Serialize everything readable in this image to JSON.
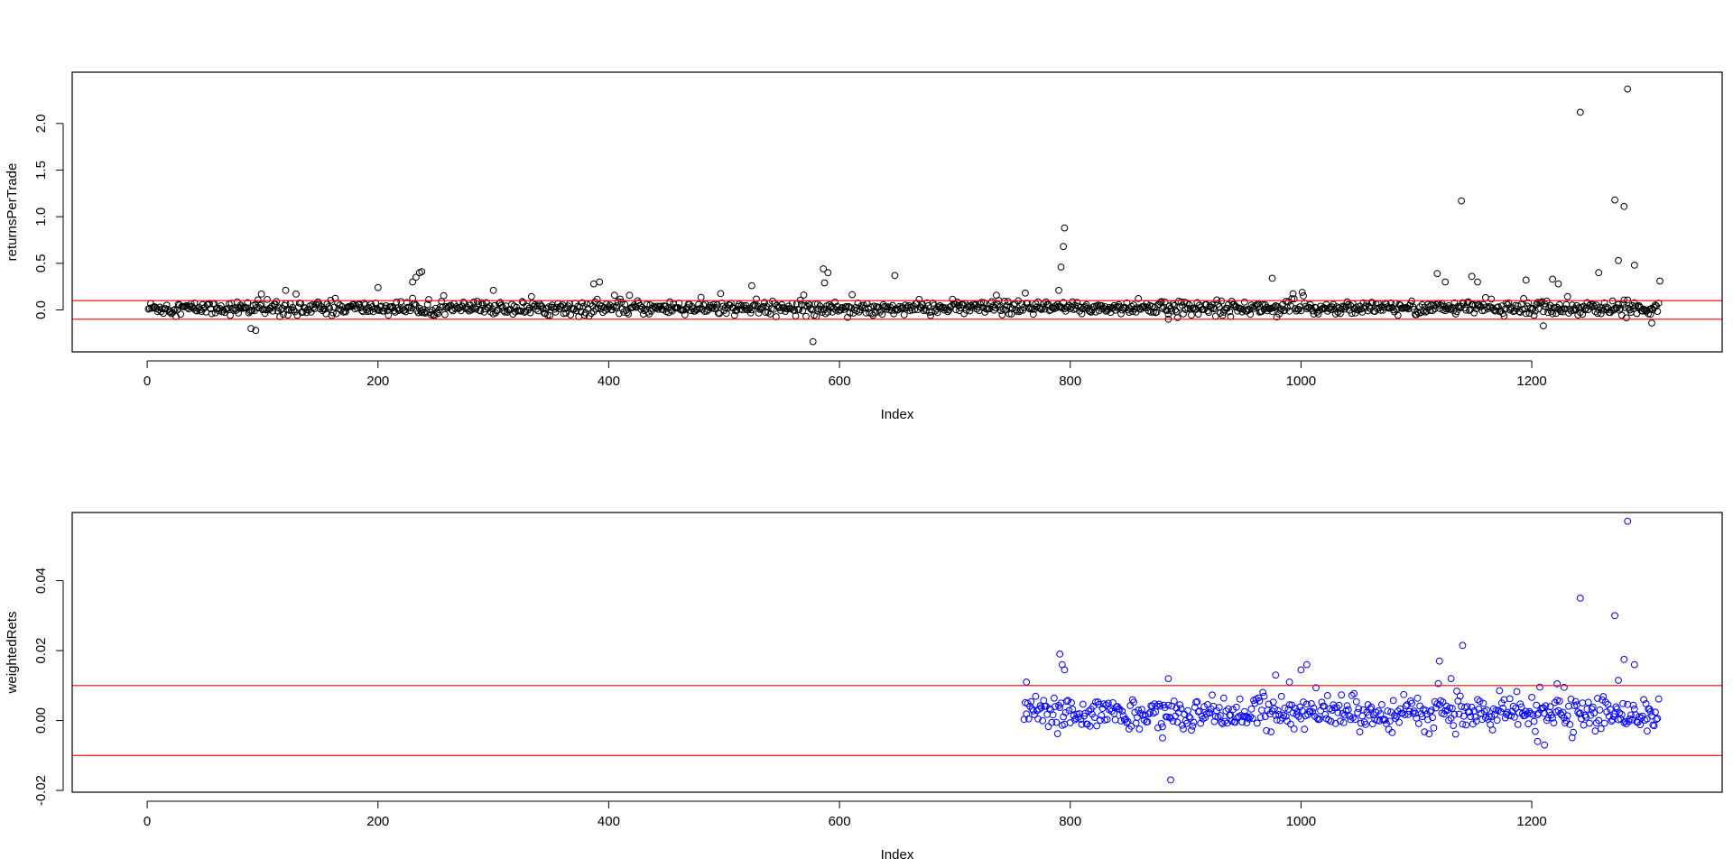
{
  "chart_data": [
    {
      "type": "scatter",
      "xlabel": "Index",
      "ylabel": "returnsPerTrade",
      "xlim": [
        -65,
        1365
      ],
      "ylim": [
        -0.45,
        2.55
      ],
      "xticks": [
        0,
        200,
        400,
        600,
        800,
        1000,
        1200
      ],
      "yticks": [
        0.0,
        0.5,
        1.0,
        1.5,
        2.0
      ],
      "ytick_labels": [
        "0.0",
        "0.5",
        "1.0",
        "1.5",
        "2.0"
      ],
      "hlines": [
        0.1,
        -0.1
      ],
      "hline_color": "#ff0000",
      "point_color": "#000000",
      "grid": false,
      "n_points": 1310,
      "baseline": 0.02,
      "notable_points": [
        {
          "x": 90,
          "y": -0.2
        },
        {
          "x": 94,
          "y": -0.22
        },
        {
          "x": 99,
          "y": 0.17
        },
        {
          "x": 120,
          "y": 0.21
        },
        {
          "x": 200,
          "y": 0.24
        },
        {
          "x": 230,
          "y": 0.3
        },
        {
          "x": 233,
          "y": 0.35
        },
        {
          "x": 236,
          "y": 0.4
        },
        {
          "x": 238,
          "y": 0.41
        },
        {
          "x": 300,
          "y": 0.21
        },
        {
          "x": 387,
          "y": 0.28
        },
        {
          "x": 392,
          "y": 0.3
        },
        {
          "x": 524,
          "y": 0.26
        },
        {
          "x": 577,
          "y": -0.34
        },
        {
          "x": 586,
          "y": 0.44
        },
        {
          "x": 590,
          "y": 0.4
        },
        {
          "x": 587,
          "y": 0.29
        },
        {
          "x": 648,
          "y": 0.37
        },
        {
          "x": 790,
          "y": 0.21
        },
        {
          "x": 792,
          "y": 0.46
        },
        {
          "x": 794,
          "y": 0.68
        },
        {
          "x": 795,
          "y": 0.88
        },
        {
          "x": 975,
          "y": 0.34
        },
        {
          "x": 885,
          "y": -0.1
        },
        {
          "x": 1118,
          "y": 0.39
        },
        {
          "x": 1125,
          "y": 0.3
        },
        {
          "x": 1139,
          "y": 1.17
        },
        {
          "x": 1148,
          "y": 0.36
        },
        {
          "x": 1153,
          "y": 0.3
        },
        {
          "x": 1195,
          "y": 0.32
        },
        {
          "x": 1210,
          "y": -0.17
        },
        {
          "x": 1218,
          "y": 0.33
        },
        {
          "x": 1223,
          "y": 0.28
        },
        {
          "x": 1242,
          "y": 2.12
        },
        {
          "x": 1258,
          "y": 0.4
        },
        {
          "x": 1272,
          "y": 1.18
        },
        {
          "x": 1275,
          "y": 0.53
        },
        {
          "x": 1280,
          "y": 1.11
        },
        {
          "x": 1283,
          "y": 2.37
        },
        {
          "x": 1289,
          "y": 0.48
        },
        {
          "x": 1304,
          "y": -0.14
        },
        {
          "x": 1311,
          "y": 0.31
        }
      ]
    },
    {
      "type": "scatter",
      "xlabel": "Index",
      "ylabel": "weightedRets",
      "xlim": [
        -65,
        1365
      ],
      "ylim": [
        -0.0205,
        0.0595
      ],
      "xticks": [
        0,
        200,
        400,
        600,
        800,
        1000,
        1200
      ],
      "yticks": [
        -0.02,
        0.0,
        0.02,
        0.04
      ],
      "ytick_labels": [
        "-0.02",
        "0.00",
        "0.02",
        "0.04"
      ],
      "hlines": [
        0.01,
        -0.01
      ],
      "hline_color": "#ff0000",
      "point_color": "#0000ff",
      "grid": false,
      "x_range": [
        760,
        1310
      ],
      "baseline": 0.002,
      "notable_points": [
        {
          "x": 762,
          "y": 0.011
        },
        {
          "x": 791,
          "y": 0.019
        },
        {
          "x": 793,
          "y": 0.016
        },
        {
          "x": 795,
          "y": 0.0145
        },
        {
          "x": 885,
          "y": 0.012
        },
        {
          "x": 887,
          "y": -0.017
        },
        {
          "x": 880,
          "y": -0.005
        },
        {
          "x": 978,
          "y": 0.013
        },
        {
          "x": 990,
          "y": 0.011
        },
        {
          "x": 1000,
          "y": 0.0145
        },
        {
          "x": 1005,
          "y": 0.016
        },
        {
          "x": 1120,
          "y": 0.017
        },
        {
          "x": 1130,
          "y": 0.012
        },
        {
          "x": 1140,
          "y": 0.0215
        },
        {
          "x": 1205,
          "y": -0.006
        },
        {
          "x": 1211,
          "y": -0.007
        },
        {
          "x": 1222,
          "y": 0.0105
        },
        {
          "x": 1228,
          "y": 0.0095
        },
        {
          "x": 1242,
          "y": 0.035
        },
        {
          "x": 1272,
          "y": 0.03
        },
        {
          "x": 1275,
          "y": 0.0115
        },
        {
          "x": 1280,
          "y": 0.0175
        },
        {
          "x": 1283,
          "y": 0.057
        },
        {
          "x": 1289,
          "y": 0.016
        },
        {
          "x": 1300,
          "y": -0.003
        }
      ]
    }
  ]
}
